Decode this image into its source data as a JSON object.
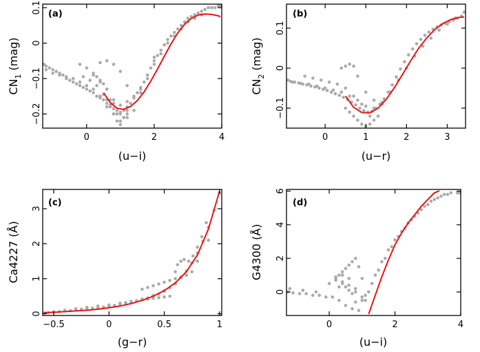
{
  "colors": {
    "points": "#aaaaaa",
    "fit": "#ee1111",
    "axes": "#000000"
  },
  "chart_data": [
    {
      "type": "scatter",
      "panel_label": "(a)",
      "xlabel": "(u−i)",
      "ylabel": "CN",
      "ylabel_sub": "1",
      "ylabel_unit": "(mag)",
      "xlim": [
        -1.3,
        4.0
      ],
      "ylim": [
        -0.24,
        0.11
      ],
      "xticks": [
        0,
        2,
        4
      ],
      "xtick_labels": [
        "0",
        "2",
        "4"
      ],
      "yticks": [
        -0.2,
        -0.1,
        0,
        0.1
      ],
      "ytick_labels": [
        "−0.2",
        "−0.1",
        "0",
        "0.1"
      ],
      "scatter_x": [
        -1.3,
        -1.2,
        -1.1,
        -1.0,
        -0.9,
        -0.8,
        -0.7,
        -0.6,
        -0.5,
        -0.4,
        -0.3,
        -0.2,
        -0.1,
        0.0,
        0.1,
        0.2,
        0.3,
        0.4,
        0.5,
        0.6,
        0.7,
        0.8,
        0.9,
        1.0,
        1.1,
        1.2,
        1.3,
        1.4,
        1.5,
        1.6,
        1.7,
        1.8,
        1.9,
        2.0,
        2.1,
        2.2,
        2.3,
        2.4,
        2.5,
        2.6,
        2.7,
        2.8,
        2.9,
        3.0,
        3.1,
        3.2,
        3.3,
        3.4,
        3.5,
        3.6,
        3.7,
        3.8,
        3.9,
        4.0,
        -1.2,
        -1.0,
        -0.8,
        -0.6,
        -0.4,
        -0.2,
        0.0,
        0.2,
        0.4,
        0.6,
        0.8,
        1.0,
        1.2,
        1.4,
        1.6,
        1.8,
        2.0,
        2.2,
        2.4,
        2.6,
        2.8,
        3.0,
        3.2,
        3.4,
        -0.2,
        0.0,
        0.2,
        0.4,
        0.6,
        0.8,
        1.0,
        1.2,
        1.4,
        1.6,
        1.8,
        2.0,
        0.2,
        0.3,
        0.4,
        0.5,
        0.6,
        0.7,
        0.8,
        0.9,
        1.0,
        1.1,
        1.2,
        0.4,
        0.6,
        0.8,
        1.0,
        1.2,
        0.6,
        0.8,
        1.0,
        1.2,
        -0.1,
        0.1,
        0.3,
        0.5,
        0.7,
        0.9,
        1.1
      ],
      "scatter_y": [
        -0.06,
        -0.065,
        -0.07,
        -0.075,
        -0.08,
        -0.085,
        -0.09,
        -0.1,
        -0.105,
        -0.11,
        -0.115,
        -0.12,
        -0.125,
        -0.13,
        -0.135,
        -0.14,
        -0.15,
        -0.155,
        -0.16,
        -0.17,
        -0.18,
        -0.185,
        -0.19,
        -0.195,
        -0.19,
        -0.18,
        -0.17,
        -0.155,
        -0.14,
        -0.125,
        -0.11,
        -0.09,
        -0.07,
        -0.05,
        -0.035,
        -0.02,
        -0.005,
        0.01,
        0.02,
        0.03,
        0.04,
        0.05,
        0.06,
        0.07,
        0.075,
        0.08,
        0.085,
        0.09,
        0.095,
        0.1,
        0.1,
        0.1,
        0.105,
        0.11,
        -0.075,
        -0.085,
        -0.09,
        -0.095,
        -0.1,
        -0.11,
        -0.12,
        -0.13,
        -0.15,
        -0.16,
        -0.17,
        -0.175,
        -0.165,
        -0.15,
        -0.13,
        -0.1,
        -0.06,
        -0.03,
        0.0,
        0.02,
        0.04,
        0.06,
        0.07,
        0.08,
        -0.06,
        -0.07,
        -0.09,
        -0.11,
        -0.13,
        -0.16,
        -0.2,
        -0.21,
        -0.19,
        -0.14,
        -0.09,
        -0.04,
        -0.085,
        -0.095,
        -0.105,
        -0.115,
        -0.13,
        -0.16,
        -0.2,
        -0.22,
        -0.23,
        -0.21,
        -0.19,
        -0.055,
        -0.05,
        -0.06,
        -0.08,
        -0.12,
        -0.18,
        -0.2,
        -0.22,
        -0.2,
        -0.095,
        -0.105,
        -0.12,
        -0.145,
        -0.175,
        -0.2,
        -0.21
      ],
      "fit_x": [
        0.5,
        0.7,
        0.9,
        1.1,
        1.3,
        1.5,
        1.7,
        1.9,
        2.1,
        2.3,
        2.5,
        2.7,
        2.9,
        3.1,
        3.3,
        3.5,
        3.7,
        3.9,
        4.0
      ],
      "fit_y": [
        -0.14,
        -0.168,
        -0.184,
        -0.187,
        -0.179,
        -0.162,
        -0.138,
        -0.107,
        -0.073,
        -0.037,
        -0.002,
        0.029,
        0.053,
        0.07,
        0.079,
        0.082,
        0.081,
        0.077,
        0.074
      ]
    },
    {
      "type": "scatter",
      "panel_label": "(b)",
      "xlabel": "(u−r)",
      "ylabel": "CN",
      "ylabel_sub": "2",
      "ylabel_unit": "(mag)",
      "xlim": [
        -0.95,
        3.45
      ],
      "ylim": [
        -0.15,
        0.16
      ],
      "xticks": [
        0,
        1,
        2,
        3
      ],
      "xtick_labels": [
        "0",
        "1",
        "2",
        "3"
      ],
      "yticks": [
        -0.1,
        0,
        0.1
      ],
      "ytick_labels": [
        "−0.1",
        "0",
        "0.1"
      ],
      "scatter_x": [
        -0.95,
        -0.85,
        -0.75,
        -0.65,
        -0.55,
        -0.45,
        -0.35,
        -0.25,
        -0.15,
        -0.05,
        0.05,
        0.15,
        0.25,
        0.35,
        0.45,
        0.55,
        0.65,
        0.75,
        0.85,
        0.95,
        1.05,
        1.15,
        1.25,
        1.35,
        1.45,
        1.55,
        1.65,
        1.75,
        1.85,
        1.95,
        2.05,
        2.15,
        2.25,
        2.35,
        2.45,
        2.55,
        2.65,
        2.75,
        2.85,
        2.95,
        3.05,
        3.15,
        3.25,
        3.35,
        3.45,
        -0.8,
        -0.6,
        -0.4,
        -0.2,
        0.0,
        0.2,
        0.4,
        0.6,
        0.8,
        1.0,
        1.2,
        1.4,
        1.6,
        1.8,
        2.0,
        2.2,
        2.4,
        2.6,
        2.8,
        3.0,
        3.2,
        -0.5,
        -0.3,
        -0.1,
        0.1,
        0.3,
        0.5,
        0.7,
        0.9,
        1.1,
        0.5,
        0.6,
        0.7,
        0.8,
        0.9,
        1.0,
        1.1,
        1.2,
        1.3,
        0.4,
        0.5,
        0.6,
        0.7,
        0.8,
        1.0,
        1.2,
        1.4
      ],
      "scatter_y": [
        -0.03,
        -0.033,
        -0.035,
        -0.037,
        -0.04,
        -0.042,
        -0.045,
        -0.047,
        -0.05,
        -0.053,
        -0.056,
        -0.06,
        -0.064,
        -0.068,
        -0.073,
        -0.078,
        -0.085,
        -0.092,
        -0.1,
        -0.106,
        -0.11,
        -0.108,
        -0.1,
        -0.09,
        -0.077,
        -0.06,
        -0.042,
        -0.022,
        -0.002,
        0.016,
        0.033,
        0.048,
        0.061,
        0.072,
        0.082,
        0.09,
        0.097,
        0.103,
        0.108,
        0.112,
        0.116,
        0.12,
        0.125,
        0.13,
        0.14,
        -0.035,
        -0.038,
        -0.04,
        -0.045,
        -0.05,
        -0.055,
        -0.06,
        -0.07,
        -0.08,
        -0.095,
        -0.1,
        -0.085,
        -0.06,
        -0.03,
        0.0,
        0.03,
        0.055,
        0.075,
        0.095,
        0.11,
        0.125,
        -0.02,
        -0.025,
        -0.03,
        -0.035,
        -0.04,
        -0.05,
        -0.07,
        -0.09,
        -0.12,
        -0.1,
        -0.11,
        -0.12,
        -0.13,
        -0.14,
        -0.145,
        -0.14,
        -0.13,
        -0.12,
        0.0,
        0.005,
        0.01,
        0.005,
        -0.02,
        -0.06,
        -0.08,
        -0.09
      ],
      "fit_x": [
        0.5,
        0.7,
        0.9,
        1.1,
        1.3,
        1.5,
        1.7,
        1.9,
        2.1,
        2.3,
        2.5,
        2.7,
        2.9,
        3.1,
        3.3,
        3.45
      ],
      "fit_y": [
        -0.07,
        -0.098,
        -0.111,
        -0.112,
        -0.1,
        -0.078,
        -0.049,
        -0.016,
        0.018,
        0.05,
        0.076,
        0.097,
        0.112,
        0.122,
        0.127,
        0.128
      ]
    },
    {
      "type": "scatter",
      "panel_label": "(c)",
      "xlabel": "(g−r)",
      "ylabel": "Ca4227 (Å)",
      "ylabel_sub": "",
      "ylabel_unit": "",
      "xlim": [
        -0.6,
        1.02
      ],
      "ylim": [
        -0.05,
        3.55
      ],
      "xticks": [
        -0.5,
        0,
        0.5,
        1
      ],
      "xtick_labels": [
        "−0.5",
        "0",
        "0.5",
        "1"
      ],
      "yticks": [
        0,
        1,
        2,
        3
      ],
      "ytick_labels": [
        "0",
        "1",
        "2",
        "3"
      ],
      "scatter_x": [
        -0.6,
        -0.55,
        -0.5,
        -0.45,
        -0.4,
        -0.35,
        -0.3,
        -0.25,
        -0.2,
        -0.15,
        -0.1,
        -0.05,
        0.0,
        0.05,
        0.1,
        0.15,
        0.2,
        0.25,
        0.3,
        0.35,
        0.4,
        0.45,
        0.5,
        0.55,
        0.6,
        0.65,
        0.7,
        0.75,
        0.8,
        0.85,
        0.9,
        0.95,
        1.0,
        -0.5,
        -0.4,
        -0.3,
        -0.2,
        -0.1,
        0.0,
        0.1,
        0.2,
        0.3,
        0.4,
        0.5,
        0.6,
        0.7,
        0.8,
        0.9,
        0.3,
        0.35,
        0.4,
        0.45,
        0.5,
        0.55,
        0.6,
        0.65,
        0.7,
        0.75,
        0.1,
        0.15,
        0.2,
        0.25,
        0.3,
        0.35,
        0.4,
        0.45,
        0.5,
        0.55,
        0.6,
        0.62,
        0.65,
        0.68,
        0.72,
        0.76,
        0.8,
        0.84,
        0.88
      ],
      "scatter_y": [
        0.02,
        0.03,
        0.05,
        0.06,
        0.08,
        0.09,
        0.11,
        0.13,
        0.14,
        0.16,
        0.17,
        0.19,
        0.21,
        0.24,
        0.27,
        0.3,
        0.33,
        0.36,
        0.4,
        0.45,
        0.5,
        0.56,
        0.64,
        0.74,
        0.87,
        1.03,
        1.22,
        1.45,
        1.73,
        2.07,
        2.47,
        2.95,
        3.45,
        0.06,
        0.1,
        0.14,
        0.18,
        0.22,
        0.25,
        0.3,
        0.35,
        0.42,
        0.52,
        0.66,
        0.85,
        1.1,
        1.5,
        2.1,
        0.7,
        0.75,
        0.8,
        0.85,
        0.9,
        0.95,
        1.0,
        1.05,
        1.1,
        1.2,
        0.3,
        0.32,
        0.35,
        0.37,
        0.4,
        0.42,
        0.44,
        0.46,
        0.48,
        0.5,
        1.2,
        1.4,
        1.5,
        1.55,
        1.5,
        1.65,
        1.9,
        2.2,
        2.6
      ],
      "fit_x": [
        -0.6,
        -0.5,
        -0.4,
        -0.3,
        -0.2,
        -0.1,
        0.0,
        0.1,
        0.2,
        0.3,
        0.4,
        0.5,
        0.6,
        0.7,
        0.8,
        0.9,
        1.0
      ],
      "fit_y": [
        0.03,
        0.04,
        0.06,
        0.08,
        0.1,
        0.13,
        0.17,
        0.22,
        0.29,
        0.38,
        0.5,
        0.66,
        0.88,
        1.2,
        1.68,
        2.42,
        3.5
      ]
    },
    {
      "type": "scatter",
      "panel_label": "(d)",
      "xlabel": "(u−i)",
      "ylabel": "G4300 (Å)",
      "ylabel_sub": "",
      "ylabel_unit": "",
      "xlim": [
        -1.3,
        4.0
      ],
      "ylim": [
        -1.4,
        6.1
      ],
      "xticks": [
        0,
        2,
        4
      ],
      "xtick_labels": [
        "0",
        "2",
        "4"
      ],
      "yticks": [
        0,
        2,
        4,
        6
      ],
      "ytick_labels": [
        "0",
        "2",
        "4",
        "6"
      ],
      "scatter_x": [
        -1.3,
        -1.1,
        -0.9,
        -0.7,
        -0.5,
        -0.3,
        -0.1,
        0.1,
        0.3,
        0.5,
        0.7,
        0.9,
        1.1,
        1.3,
        1.5,
        1.7,
        1.9,
        2.1,
        2.3,
        2.5,
        2.7,
        2.9,
        3.1,
        3.3,
        3.5,
        3.7,
        3.9,
        4.0,
        -1.2,
        -0.8,
        -0.4,
        0.0,
        0.2,
        0.4,
        0.6,
        0.8,
        1.0,
        0.2,
        0.3,
        0.4,
        0.5,
        0.6,
        0.7,
        0.8,
        0.9,
        1.0,
        1.1,
        0.3,
        0.4,
        0.5,
        0.6,
        0.7,
        0.8,
        0.2,
        0.4,
        0.6,
        0.8,
        1.0,
        1.2,
        1.4,
        1.6,
        1.8,
        2.0,
        2.2,
        2.4,
        2.6,
        2.8,
        3.0,
        3.2,
        3.4,
        3.6
      ],
      "scatter_y": [
        0.0,
        -0.05,
        -0.1,
        -0.1,
        -0.2,
        -0.2,
        -0.3,
        -0.3,
        -0.5,
        -0.8,
        -1.0,
        -1.1,
        -0.5,
        0.5,
        1.3,
        2.0,
        2.7,
        3.3,
        3.8,
        4.3,
        4.7,
        5.1,
        5.4,
        5.6,
        5.8,
        5.9,
        5.9,
        5.9,
        0.2,
        0.1,
        0.0,
        0.5,
        0.8,
        0.6,
        0.4,
        0.0,
        -0.5,
        0.7,
        1.0,
        1.2,
        1.4,
        1.6,
        1.8,
        2.0,
        1.5,
        0.8,
        -0.2,
        0.3,
        0.5,
        0.3,
        0.1,
        -0.1,
        -0.6,
        0.9,
        1.0,
        0.8,
        0.2,
        -0.3,
        0.0,
        1.0,
        1.8,
        2.5,
        3.1,
        3.6,
        4.1,
        4.5,
        4.9,
        5.2,
        5.5,
        5.7,
        5.8
      ],
      "fit_x": [
        1.2,
        1.4,
        1.6,
        1.8,
        2.0,
        2.2,
        2.4,
        2.6,
        2.8,
        3.0,
        3.2,
        3.35
      ],
      "fit_y": [
        -1.4,
        -0.2,
        0.9,
        1.9,
        2.8,
        3.5,
        4.1,
        4.6,
        5.1,
        5.5,
        5.9,
        6.1
      ]
    }
  ]
}
